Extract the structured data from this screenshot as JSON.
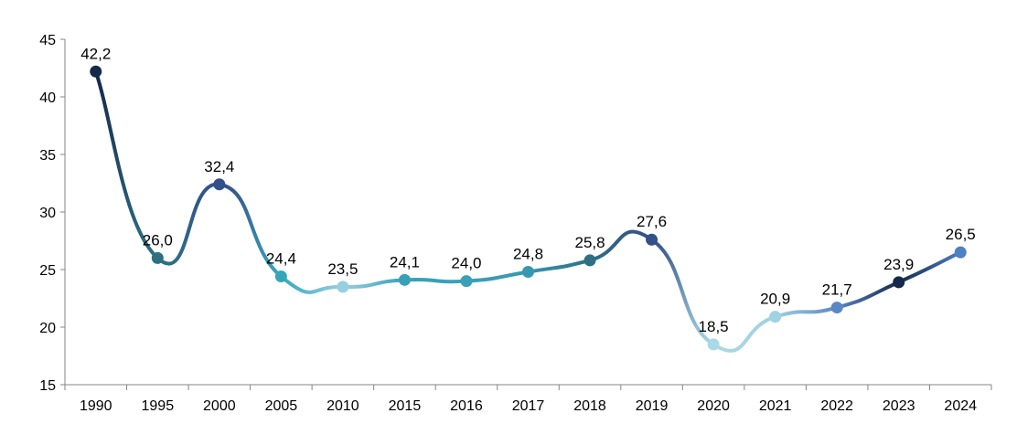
{
  "chart_data": {
    "type": "line",
    "title": "",
    "xlabel": "",
    "ylabel": "",
    "categories": [
      "1990",
      "1995",
      "2000",
      "2005",
      "2010",
      "2015",
      "2016",
      "2017",
      "2018",
      "2019",
      "2020",
      "2021",
      "2022",
      "2023",
      "2024"
    ],
    "values": [
      42.2,
      26.0,
      32.4,
      24.4,
      23.5,
      24.1,
      24.0,
      24.8,
      25.8,
      27.6,
      18.5,
      20.9,
      21.7,
      23.9,
      26.5
    ],
    "value_labels": [
      "42,2",
      "26,0",
      "32,4",
      "24,4",
      "23,5",
      "24,1",
      "24,0",
      "24,8",
      "25,8",
      "27,6",
      "18,5",
      "20,9",
      "21,7",
      "23,9",
      "26,5"
    ],
    "ylim": [
      15,
      45
    ],
    "yticks": [
      "15",
      "20",
      "25",
      "30",
      "35",
      "40",
      "45"
    ],
    "grid": false,
    "legend": "none",
    "point_colors": [
      "#15294a",
      "#2e6f83",
      "#34508a",
      "#36a7bb",
      "#96cfdf",
      "#3aa0b8",
      "#3aa0b8",
      "#3897b0",
      "#2e6f83",
      "#34508a",
      "#a9d8e6",
      "#9fd2e2",
      "#5b86c6",
      "#15294a",
      "#4d80c4"
    ]
  }
}
